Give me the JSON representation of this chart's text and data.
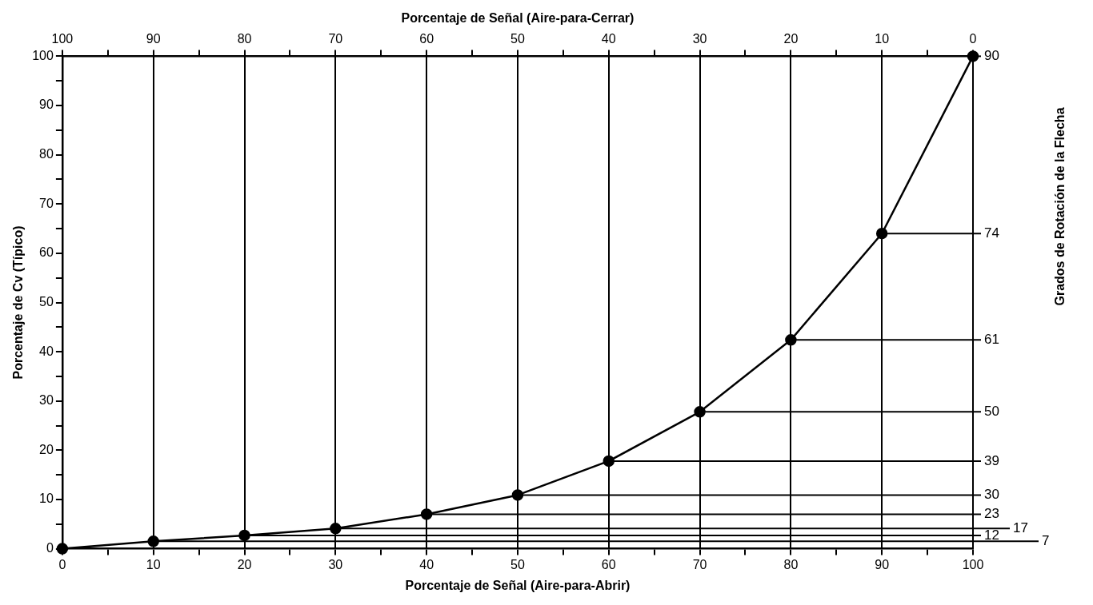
{
  "chart_data": {
    "type": "line",
    "xlabel": "Porcentaje de Señal (Aire-para-Abrir)",
    "x2label": "Porcentaje de Señal (Aire-para-Cerrar)",
    "ylabel": "Porcentaje de Cv (Típico)",
    "x": [
      0,
      10,
      20,
      30,
      40,
      50,
      60,
      70,
      80,
      90,
      100
    ],
    "series": [
      {
        "color": "#000000",
        "values": [
          0,
          1.5,
          2.7,
          4.1,
          7.0,
          10.9,
          17.8,
          27.8,
          42.4,
          64,
          100
        ]
      }
    ],
    "xlim": [
      0,
      100
    ],
    "xticks": [
      0,
      {
        "value": 5,
        "label": null
      },
      10,
      {
        "value": 15,
        "label": null
      },
      20,
      {
        "value": 25,
        "label": null
      },
      30,
      {
        "value": 35,
        "label": null
      },
      40,
      {
        "value": 45,
        "label": null
      },
      50,
      {
        "value": 55,
        "label": null
      },
      60,
      {
        "value": 65,
        "label": null
      },
      70,
      {
        "value": 75,
        "label": null
      },
      80,
      {
        "value": 85,
        "label": null
      },
      90,
      {
        "value": 95,
        "label": null
      },
      100
    ],
    "x2lim": [
      100,
      0
    ],
    "x2ticks": [
      100,
      {
        "value": 95,
        "label": null
      },
      90,
      {
        "value": 85,
        "label": null
      },
      80,
      {
        "value": 75,
        "label": null
      },
      70,
      {
        "value": 65,
        "label": null
      },
      60,
      {
        "value": 55,
        "label": null
      },
      50,
      {
        "value": 45,
        "label": null
      },
      40,
      {
        "value": 35,
        "label": null
      },
      30,
      {
        "value": 25,
        "label": null
      },
      20,
      {
        "value": 15,
        "label": null
      },
      10,
      {
        "value": 5,
        "label": null
      },
      0
    ],
    "ylim": [
      0,
      100
    ],
    "yticks": [
      0,
      {
        "value": 5,
        "label": null
      },
      10,
      {
        "value": 15,
        "label": null
      },
      20,
      {
        "value": 25,
        "label": null
      },
      30,
      {
        "value": 35,
        "label": null
      },
      40,
      {
        "value": 45,
        "label": null
      },
      50,
      {
        "value": 55,
        "label": null
      },
      60,
      {
        "value": 65,
        "label": null
      },
      70,
      {
        "value": 75,
        "label": null
      },
      80,
      {
        "value": 85,
        "label": null
      },
      90,
      {
        "value": 95,
        "label": null
      },
      100
    ],
    "annotations": [
      "Grados de Rotación de la Flecha",
      {
        "text": "90",
        "x": 100,
        "y": 100
      },
      {
        "text": "74",
        "x": 90,
        "y": 64
      },
      {
        "text": "61",
        "x": 80,
        "y": 42.4
      },
      {
        "text": "50",
        "x": 70,
        "y": 27.8
      },
      {
        "text": "39",
        "x": 60,
        "y": 17.8
      },
      {
        "text": "30",
        "x": 50,
        "y": 10.9
      },
      {
        "text": "23",
        "x": 40,
        "y": 7.0
      },
      {
        "text": "17",
        "x": 30,
        "y": 4.1
      },
      {
        "text": "12",
        "x": 20,
        "y": 2.7
      },
      {
        "text": "7",
        "x": 10,
        "y": 1.5
      }
    ],
    "grid": "x",
    "marker": "circle",
    "line_style": "solid",
    "legend": false
  }
}
